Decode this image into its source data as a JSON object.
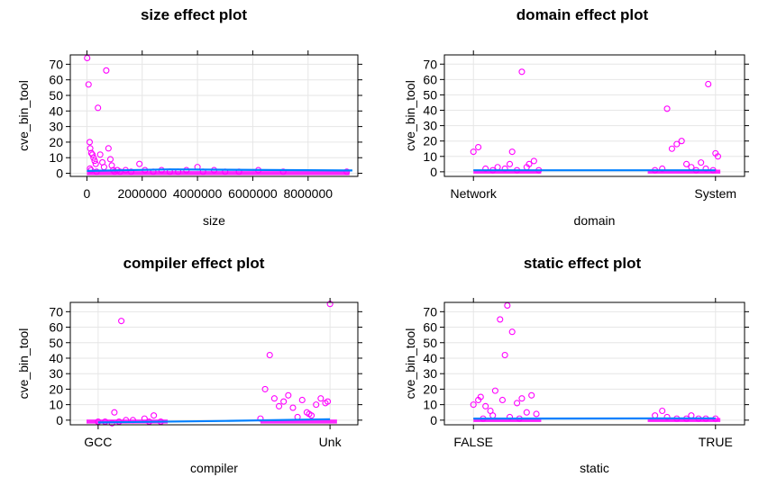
{
  "colors": {
    "points": "#ff00ff",
    "line": "#0080ff",
    "grid": "#e6e6e6",
    "frame": "#000000"
  },
  "chart_data": [
    {
      "type": "scatter",
      "title": "size effect plot",
      "xlabel": "size",
      "ylabel": "cve_bin_tool",
      "x_tick_labels": [
        "0",
        "2000000",
        "4000000",
        "6000000",
        "8000000"
      ],
      "x_ticks": [
        0,
        2000000,
        4000000,
        6000000,
        8000000
      ],
      "xlim": [
        -600000,
        9800000
      ],
      "y_tick_labels": [
        "0",
        "10",
        "20",
        "30",
        "40",
        "50",
        "60",
        "70"
      ],
      "y_ticks": [
        0,
        10,
        20,
        30,
        40,
        50,
        60,
        70
      ],
      "ylim": [
        -2,
        76
      ],
      "grid": true,
      "points": [
        [
          10000,
          74
        ],
        [
          60000,
          57
        ],
        [
          100000,
          20
        ],
        [
          120000,
          16
        ],
        [
          160000,
          13
        ],
        [
          200000,
          12
        ],
        [
          240000,
          10
        ],
        [
          280000,
          8
        ],
        [
          320000,
          6
        ],
        [
          110000,
          3
        ],
        [
          150000,
          2
        ],
        [
          350000,
          1
        ],
        [
          400000,
          42
        ],
        [
          480000,
          12
        ],
        [
          560000,
          7
        ],
        [
          620000,
          4
        ],
        [
          700000,
          66
        ],
        [
          780000,
          16
        ],
        [
          850000,
          9
        ],
        [
          900000,
          5
        ],
        [
          950000,
          2
        ],
        [
          1000000,
          1
        ],
        [
          1100000,
          2
        ],
        [
          1200000,
          1
        ],
        [
          1400000,
          2
        ],
        [
          1600000,
          1
        ],
        [
          1900000,
          6
        ],
        [
          2100000,
          2
        ],
        [
          2400000,
          1
        ],
        [
          2700000,
          2
        ],
        [
          3000000,
          1
        ],
        [
          3300000,
          1
        ],
        [
          3600000,
          2
        ],
        [
          4000000,
          4
        ],
        [
          4200000,
          1
        ],
        [
          4600000,
          2
        ],
        [
          5000000,
          1
        ],
        [
          5500000,
          1
        ],
        [
          6200000,
          2
        ],
        [
          7100000,
          1
        ],
        [
          9400000,
          1
        ]
      ],
      "fit": [
        [
          0,
          1.5
        ],
        [
          3000000,
          2.5
        ],
        [
          9600000,
          1.8
        ]
      ]
    },
    {
      "type": "scatter",
      "title": "domain effect plot",
      "xlabel": "domain",
      "ylabel": "cve_bin_tool",
      "categories": [
        "Network",
        "System"
      ],
      "y_tick_labels": [
        "0",
        "10",
        "20",
        "30",
        "40",
        "50",
        "60",
        "70"
      ],
      "y_ticks": [
        0,
        10,
        20,
        30,
        40,
        50,
        60,
        70
      ],
      "ylim": [
        -3,
        76
      ],
      "grid": true,
      "points": [
        [
          1,
          13
        ],
        [
          1.02,
          16
        ],
        [
          1.05,
          2
        ],
        [
          1.08,
          1
        ],
        [
          1.1,
          3
        ],
        [
          1.13,
          2
        ],
        [
          1.16,
          13
        ],
        [
          1.18,
          1
        ],
        [
          1.2,
          65
        ],
        [
          1.23,
          5
        ],
        [
          1.25,
          7
        ],
        [
          1.27,
          1
        ],
        [
          1.15,
          5
        ],
        [
          1.22,
          3
        ],
        [
          1.75,
          1
        ],
        [
          1.78,
          2
        ],
        [
          1.8,
          41
        ],
        [
          1.82,
          15
        ],
        [
          1.84,
          18
        ],
        [
          1.86,
          20
        ],
        [
          1.88,
          5
        ],
        [
          1.9,
          3
        ],
        [
          1.92,
          1
        ],
        [
          1.94,
          6
        ],
        [
          1.96,
          2
        ],
        [
          1.97,
          57
        ],
        [
          1.99,
          1
        ],
        [
          2.0,
          12
        ],
        [
          2.01,
          10
        ]
      ],
      "fit": [
        [
          1,
          1
        ],
        [
          2,
          1
        ]
      ]
    },
    {
      "type": "scatter",
      "title": "compiler effect plot",
      "xlabel": "compiler",
      "ylabel": "cve_bin_tool",
      "categories": [
        "GCC",
        "Unk"
      ],
      "y_tick_labels": [
        "0",
        "10",
        "20",
        "30",
        "40",
        "50",
        "60",
        "70"
      ],
      "y_ticks": [
        0,
        10,
        20,
        30,
        40,
        50,
        60,
        70
      ],
      "ylim": [
        -3,
        76
      ],
      "grid": true,
      "points": [
        [
          1.0,
          -1
        ],
        [
          1.03,
          -1
        ],
        [
          1.06,
          -2
        ],
        [
          1.07,
          5
        ],
        [
          1.09,
          -1
        ],
        [
          1.12,
          0
        ],
        [
          1.1,
          64
        ],
        [
          1.2,
          1
        ],
        [
          1.24,
          3
        ],
        [
          1.27,
          -1
        ],
        [
          1.15,
          0
        ],
        [
          1.22,
          -1
        ],
        [
          1.7,
          1
        ],
        [
          1.72,
          20
        ],
        [
          1.74,
          42
        ],
        [
          1.76,
          14
        ],
        [
          1.78,
          9
        ],
        [
          1.8,
          12
        ],
        [
          1.82,
          16
        ],
        [
          1.84,
          8
        ],
        [
          1.86,
          2
        ],
        [
          1.88,
          13
        ],
        [
          1.9,
          5
        ],
        [
          1.92,
          3
        ],
        [
          1.94,
          10
        ],
        [
          1.96,
          14
        ],
        [
          1.98,
          11
        ],
        [
          2.0,
          75
        ],
        [
          1.99,
          12
        ],
        [
          1.91,
          4
        ]
      ],
      "fit": [
        [
          1,
          -1.5
        ],
        [
          1.55,
          -0.5
        ],
        [
          2,
          0.6
        ]
      ]
    },
    {
      "type": "scatter",
      "title": "static effect plot",
      "xlabel": "static",
      "ylabel": "cve_bin_tool",
      "categories": [
        "FALSE",
        "TRUE"
      ],
      "y_tick_labels": [
        "0",
        "10",
        "20",
        "30",
        "40",
        "50",
        "60",
        "70"
      ],
      "y_ticks": [
        0,
        10,
        20,
        30,
        40,
        50,
        60,
        70
      ],
      "ylim": [
        -3,
        76
      ],
      "grid": true,
      "points": [
        [
          1.0,
          10
        ],
        [
          1.02,
          13
        ],
        [
          1.03,
          15
        ],
        [
          1.05,
          9
        ],
        [
          1.07,
          6
        ],
        [
          1.09,
          19
        ],
        [
          1.11,
          65
        ],
        [
          1.12,
          13
        ],
        [
          1.13,
          42
        ],
        [
          1.14,
          74
        ],
        [
          1.16,
          57
        ],
        [
          1.18,
          11
        ],
        [
          1.2,
          14
        ],
        [
          1.22,
          5
        ],
        [
          1.24,
          16
        ],
        [
          1.26,
          4
        ],
        [
          1.08,
          3
        ],
        [
          1.15,
          2
        ],
        [
          1.04,
          1
        ],
        [
          1.19,
          1
        ],
        [
          1.75,
          3
        ],
        [
          1.78,
          6
        ],
        [
          1.8,
          2
        ],
        [
          1.84,
          1
        ],
        [
          1.88,
          1
        ],
        [
          1.9,
          3
        ],
        [
          1.93,
          1
        ],
        [
          1.96,
          1
        ],
        [
          2.0,
          1
        ]
      ],
      "fit": [
        [
          1,
          1
        ],
        [
          2,
          1.2
        ]
      ]
    }
  ]
}
